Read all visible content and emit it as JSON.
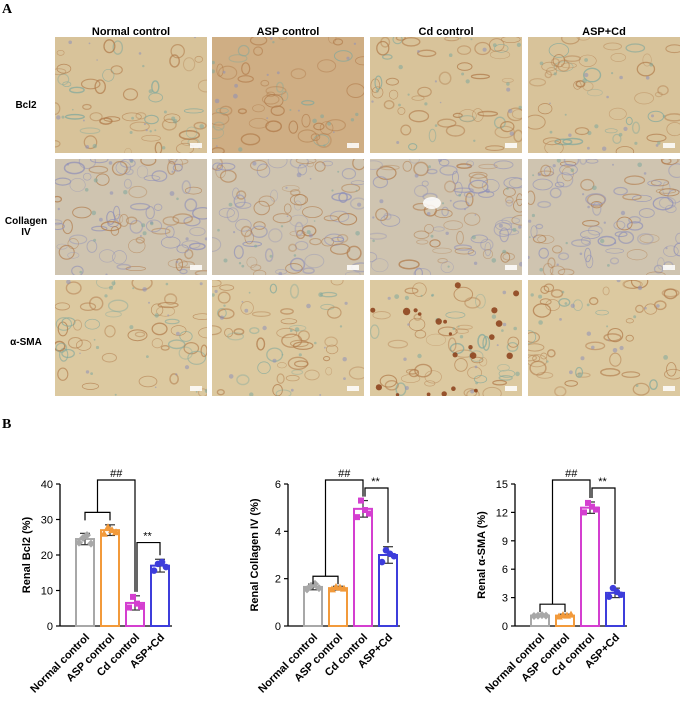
{
  "panels": {
    "a": "A",
    "b": "B"
  },
  "micrograph": {
    "columns": [
      "Normal control",
      "ASP control",
      "Cd control",
      "ASP+Cd"
    ],
    "rows": [
      "Bcl2",
      "Collagen IV",
      "α-SMA"
    ],
    "stain_colors": {
      "background": "#d9c79c",
      "brown": "#b07a4a",
      "blue": "#8e8fb8",
      "teal": "#7fa79c",
      "dark_brown": "#8a3d18"
    }
  },
  "chart_data": [
    {
      "type": "bar",
      "ylabel": "Renal Bcl2 (%)",
      "categories": [
        "Normal control",
        "ASP control",
        "Cd control",
        "ASP+Cd"
      ],
      "values": [
        24.5,
        27.0,
        6.5,
        17.0
      ],
      "errors": [
        1.6,
        1.5,
        2.0,
        1.8
      ],
      "points": [
        [
          23.5,
          24.8,
          25.6,
          23.2
        ],
        [
          26.0,
          27.8,
          27.0,
          26.4
        ],
        [
          5.2,
          8.2,
          6.3,
          5.4
        ],
        [
          15.6,
          17.5,
          18.0,
          16.6
        ]
      ],
      "ylim": [
        0,
        40
      ],
      "yticks": [
        0,
        10,
        20,
        30,
        40
      ],
      "colors": [
        "#a8a8a8",
        "#f29a3b",
        "#d43fd0",
        "#3d3ddb"
      ],
      "annotations": [
        "##",
        "**"
      ]
    },
    {
      "type": "bar",
      "ylabel": "Renal Collagen IV (%)",
      "categories": [
        "Normal control",
        "ASP control",
        "Cd control",
        "ASP+Cd"
      ],
      "values": [
        1.65,
        1.6,
        4.95,
        3.0
      ],
      "errors": [
        0.12,
        0.08,
        0.35,
        0.35
      ],
      "points": [
        [
          1.55,
          1.7,
          1.78,
          1.6
        ],
        [
          1.55,
          1.65,
          1.62,
          1.58
        ],
        [
          4.6,
          5.3,
          4.9,
          4.75
        ],
        [
          2.7,
          3.2,
          3.05,
          2.95
        ]
      ],
      "ylim": [
        0,
        6
      ],
      "yticks": [
        0,
        2,
        4,
        6
      ],
      "colors": [
        "#a8a8a8",
        "#f29a3b",
        "#d43fd0",
        "#3d3ddb"
      ],
      "annotations": [
        "##",
        "**"
      ]
    },
    {
      "type": "bar",
      "ylabel": "Renal α-SMA (%)",
      "categories": [
        "Normal control",
        "ASP control",
        "Cd control",
        "ASP+Cd"
      ],
      "values": [
        1.1,
        1.1,
        12.5,
        3.5
      ],
      "errors": [
        0.1,
        0.15,
        0.6,
        0.5
      ],
      "points": [
        [
          1.05,
          1.1,
          1.15,
          1.1
        ],
        [
          1.0,
          1.15,
          1.1,
          1.2
        ],
        [
          12.0,
          13.0,
          12.6,
          12.3
        ],
        [
          3.1,
          4.0,
          3.6,
          3.3
        ]
      ],
      "ylim": [
        0,
        15
      ],
      "yticks": [
        0,
        3,
        6,
        9,
        12,
        15
      ],
      "colors": [
        "#a8a8a8",
        "#f29a3b",
        "#d43fd0",
        "#3d3ddb"
      ],
      "annotations": [
        "##",
        "**"
      ]
    }
  ]
}
